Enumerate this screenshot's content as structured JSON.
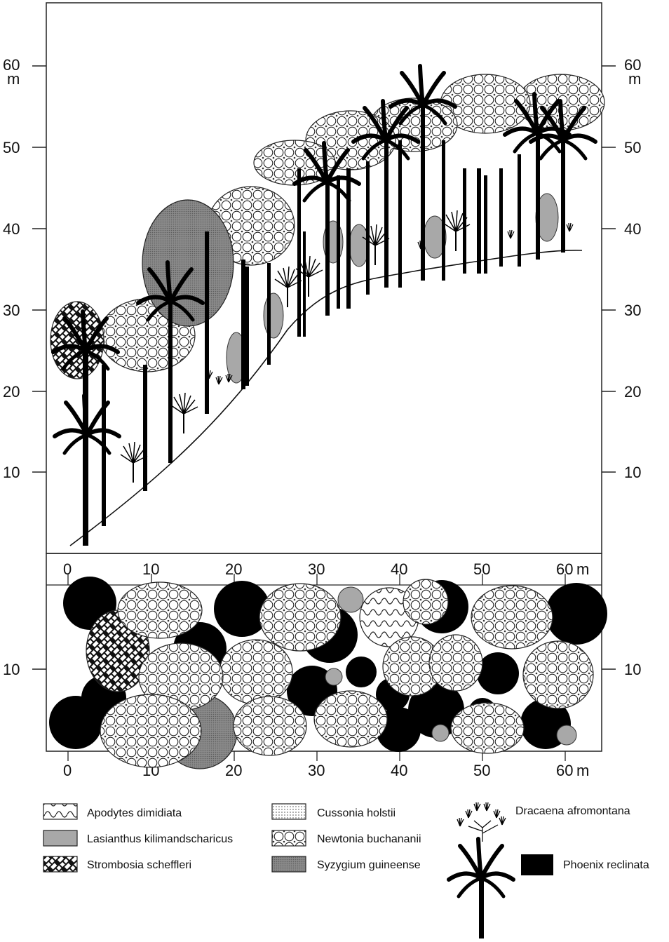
{
  "profile": {
    "y_ticks": [
      "10",
      "20",
      "30",
      "40",
      "50",
      "60"
    ],
    "unit": "m"
  },
  "plan": {
    "x_ticks": [
      "0",
      "10",
      "20",
      "30",
      "40",
      "50",
      "60"
    ],
    "x_unit": "m",
    "y_tick": "10"
  },
  "legend": {
    "apodytes": "Apodytes dimidiata",
    "lasianthus": "Lasianthus kilimandscharicus",
    "strombosia": "Strombosia scheffleri",
    "cussonia": "Cussonia holstii",
    "newtonia": "Newtonia buchananii",
    "syzygium": "Syzygium guineense",
    "dracaena": "Dracaena afromontana",
    "phoenix": "Phoenix reclinata"
  },
  "colors": {
    "lasianthus_fill": "#a8a8a8",
    "syzygium_fill": "#8a8a8a",
    "phoenix_fill": "#000000"
  }
}
